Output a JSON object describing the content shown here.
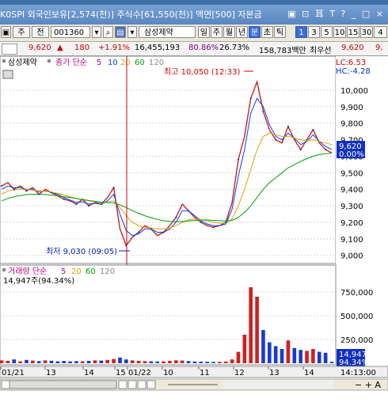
{
  "titlebar": {
    "info": "K0SPI 외국인보유[2,574(천)] 주식수[61,550(천)] 액면[500] 자본금",
    "controls": "▣ ⊡ 耳 T ? _ □ ×"
  },
  "toolbar": {
    "code_label": "주",
    "market": "전",
    "stock_code": "001360",
    "stock_name": "삼성제약",
    "period_buttons": [
      "일",
      "주",
      "월",
      "년",
      "분",
      "초",
      "틱"
    ],
    "interval_buttons": [
      "1",
      "3",
      "5",
      "10",
      "15",
      "30",
      "4"
    ]
  },
  "quote": {
    "price": "9,620",
    "change_arrow": "▲",
    "change": "180",
    "change_pct": "+1.91%",
    "volume": "16,455,193",
    "vol_pct": "80.86%",
    "turnover": "26.73%",
    "amount": "158,783백만",
    "best": "최우선",
    "best_price": "9,620",
    "tail": "9,"
  },
  "price_panel": {
    "legend_stock": "삼성제약",
    "legend_ma": "종가 단순",
    "ma_periods": [
      "5",
      "10",
      "20",
      "60",
      "120"
    ],
    "lc": "LC:6.53",
    "hc": "HC:-4.28",
    "high_label": "최고 10,050 (12:33)",
    "low_label": "최저 9,030 (09:05)",
    "current_price": "9,620",
    "current_pct": "0.00%"
  },
  "volume_panel": {
    "legend": "거래량 단순",
    "ma_periods": [
      "5",
      "20",
      "60",
      "120"
    ],
    "volume_text": "14,947주(94.34%)",
    "current_volume": "14,947",
    "current_pct": "94.34%"
  },
  "xaxis": {
    "labels": [
      "01/21",
      "13",
      "14",
      "15",
      "01/22",
      "10",
      "11",
      "12",
      "13",
      "14"
    ],
    "current_time": "14:13:00"
  },
  "chart_data": {
    "type": "line",
    "title": "삼성제약",
    "price_axis": [
      "10,000",
      "9,900",
      "9,800",
      "9,700",
      "9,600",
      "9,500",
      "9,400",
      "9,300",
      "9,200",
      "9,100",
      "9,000"
    ],
    "price_ylim": [
      8970,
      10100
    ],
    "volume_axis": [
      "750,000",
      "500,000",
      "250,000"
    ],
    "volume_ylim": [
      0,
      900000
    ],
    "high": 10050,
    "low": 9030,
    "last": 9620,
    "series": [
      {
        "name": "price",
        "values": [
          9420,
          9440,
          9400,
          9420,
          9390,
          9410,
          9370,
          9400,
          9380,
          9360,
          9340,
          9330,
          9310,
          9340,
          9300,
          9320,
          9310,
          9350,
          9410,
          9160,
          9060,
          9110,
          9140,
          9180,
          9160,
          9120,
          9140,
          9180,
          9230,
          9310,
          9270,
          9230,
          9200,
          9180,
          9170,
          9180,
          9200,
          9320,
          9580,
          9720,
          9950,
          10050,
          9870,
          9760,
          9700,
          9680,
          9780,
          9700,
          9640,
          9700,
          9760,
          9680,
          9640,
          9620
        ]
      },
      {
        "name": "ma5",
        "values": [
          9400,
          9420,
          9410,
          9410,
          9400,
          9400,
          9385,
          9390,
          9380,
          9370,
          9350,
          9335,
          9320,
          9325,
          9310,
          9315,
          9310,
          9330,
          9370,
          9250,
          9150,
          9120,
          9130,
          9160,
          9160,
          9140,
          9140,
          9160,
          9200,
          9270,
          9270,
          9240,
          9210,
          9190,
          9180,
          9180,
          9190,
          9280,
          9480,
          9640,
          9860,
          9950,
          9900,
          9790,
          9720,
          9700,
          9740,
          9710,
          9670,
          9690,
          9730,
          9690,
          9660,
          9640
        ]
      },
      {
        "name": "ma20",
        "values": [
          9370,
          9390,
          9395,
          9400,
          9400,
          9395,
          9390,
          9388,
          9383,
          9375,
          9365,
          9355,
          9345,
          9338,
          9330,
          9325,
          9320,
          9322,
          9330,
          9290,
          9240,
          9200,
          9180,
          9170,
          9165,
          9160,
          9160,
          9165,
          9180,
          9200,
          9215,
          9220,
          9215,
          9210,
          9200,
          9195,
          9195,
          9220,
          9300,
          9400,
          9520,
          9640,
          9720,
          9740,
          9730,
          9720,
          9720,
          9710,
          9700,
          9695,
          9700,
          9690,
          9680,
          9670
        ]
      },
      {
        "name": "ma60",
        "values": [
          9330,
          9345,
          9355,
          9362,
          9368,
          9370,
          9370,
          9368,
          9365,
          9360,
          9355,
          9350,
          9344,
          9338,
          9332,
          9327,
          9322,
          9319,
          9318,
          9305,
          9290,
          9270,
          9255,
          9240,
          9228,
          9218,
          9210,
          9206,
          9204,
          9205,
          9208,
          9212,
          9214,
          9214,
          9212,
          9210,
          9208,
          9212,
          9230,
          9260,
          9300,
          9350,
          9400,
          9440,
          9470,
          9500,
          9530,
          9550,
          9570,
          9585,
          9600,
          9610,
          9615,
          9620
        ]
      }
    ],
    "volume_bars": [
      30000,
      25000,
      40000,
      20000,
      35000,
      28000,
      22000,
      30000,
      26000,
      20000,
      24000,
      18000,
      22000,
      20000,
      25000,
      30000,
      28000,
      35000,
      45000,
      60000,
      40000,
      30000,
      25000,
      22000,
      20000,
      18000,
      20000,
      25000,
      30000,
      28000,
      22000,
      18000,
      16000,
      15000,
      14000,
      15000,
      18000,
      40000,
      120000,
      300000,
      800000,
      700000,
      350000,
      220000,
      180000,
      150000,
      240000,
      160000,
      140000,
      130000,
      150000,
      120000,
      110000,
      14947
    ]
  }
}
